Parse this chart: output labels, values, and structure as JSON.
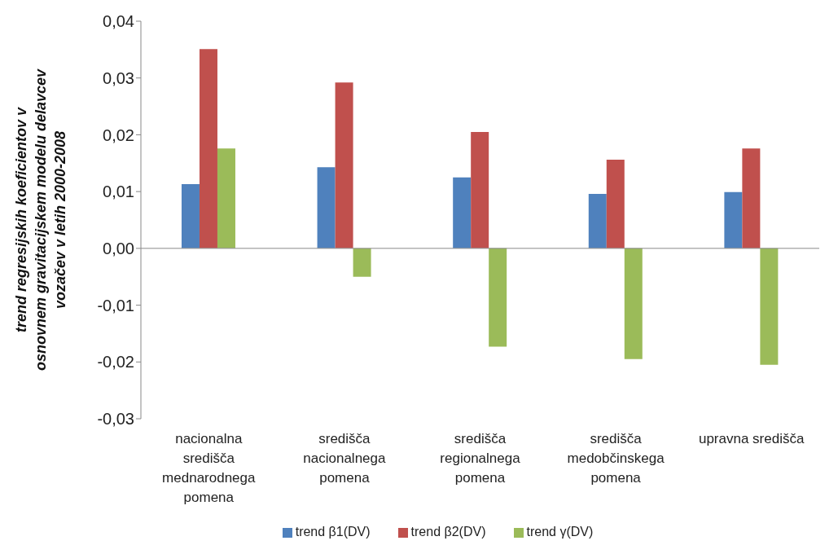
{
  "chart_data": {
    "type": "bar",
    "ylabel": "trend regresijskih koeficientov v\nosnovnem gravitacijskem modelu delavcev\nvozačev v letih 2000-2008",
    "categories": [
      "nacionalna središča mednarodnega pomena",
      "središča nacionalnega pomena",
      "središča regionalnega pomena",
      "središča medobčinskega pomena",
      "upravna središča"
    ],
    "series": [
      {
        "name": "trend β1(DV)",
        "color": "#4f81bd",
        "values": [
          0.0113,
          0.0143,
          0.0125,
          0.0096,
          0.0099
        ]
      },
      {
        "name": "trend β2(DV)",
        "color": "#c0504d",
        "values": [
          0.0351,
          0.0292,
          0.0205,
          0.0156,
          0.0176
        ]
      },
      {
        "name": "trend γ(DV)",
        "color": "#9bbb59",
        "values": [
          0.0176,
          -0.005,
          -0.0173,
          -0.0195,
          -0.0205
        ]
      }
    ],
    "ylim": [
      -0.03,
      0.04
    ],
    "yticks": [
      {
        "value": -0.03,
        "label": "-0,03"
      },
      {
        "value": -0.02,
        "label": "-0,02"
      },
      {
        "value": -0.01,
        "label": "-0,01"
      },
      {
        "value": 0,
        "label": "0,00"
      },
      {
        "value": 0.01,
        "label": "0,01"
      },
      {
        "value": 0.02,
        "label": "0,02"
      },
      {
        "value": 0.03,
        "label": "0,03"
      },
      {
        "value": 0.04,
        "label": "0,04"
      }
    ],
    "ref_lines": [
      {
        "axis": "y",
        "value": 0,
        "color": "#888888"
      }
    ],
    "legend": "bottom"
  }
}
